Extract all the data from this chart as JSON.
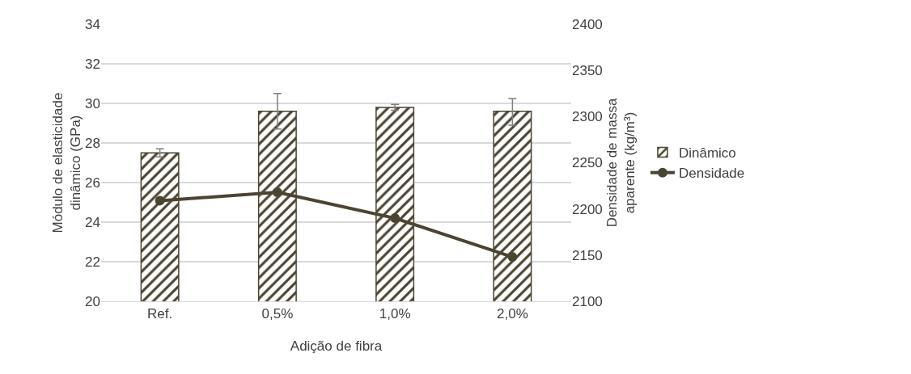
{
  "chart_data": {
    "type": "bar",
    "xlabel": "Adição de fibra",
    "ylabel": "Módulo de elasticidade dinâmico (GPa)",
    "y2label": "Densidade de massa aparente (kg/m³)",
    "categories": [
      "Ref.",
      "0,5%",
      "1,0%",
      "2,0%"
    ],
    "series": [
      {
        "name": "Dinâmico",
        "color": "#4a4430",
        "values": [
          27.5,
          29.6,
          29.8,
          29.6
        ],
        "errors": [
          [
            27.3,
            27.7
          ],
          [
            28.7,
            30.5
          ],
          [
            29.65,
            29.95
          ],
          [
            28.9,
            30.25
          ]
        ]
      },
      {
        "name": "Densidade",
        "type": "line",
        "axis": "y2",
        "color": "#4a4430",
        "marker": "circle",
        "values": [
          2209,
          2218,
          2190,
          2148
        ]
      }
    ],
    "ylim": [
      20,
      34
    ],
    "yticks": [
      20,
      22,
      24,
      26,
      28,
      30,
      32,
      34
    ],
    "y2lim": [
      2100,
      2400
    ],
    "y2ticks": [
      2100,
      2150,
      2200,
      2250,
      2300,
      2350,
      2400
    ],
    "grid": "y",
    "legend": "right"
  }
}
